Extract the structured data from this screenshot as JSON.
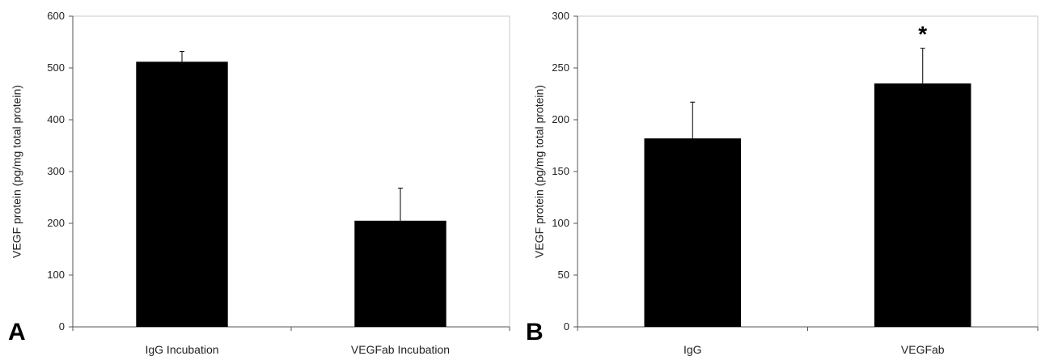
{
  "chart_data": [
    {
      "type": "bar",
      "panel_label": "A",
      "ylabel": "VEGF protein (pg/mg total protein)",
      "categories": [
        "IgG Incubation",
        "VEGFab Incubation"
      ],
      "values": [
        512,
        205
      ],
      "errors": [
        20,
        63
      ],
      "annotations": [
        "",
        ""
      ],
      "ylim": [
        0,
        600
      ],
      "yticks": [
        0,
        100,
        200,
        300,
        400,
        500,
        600
      ],
      "bar_color": "#000000",
      "grid": false
    },
    {
      "type": "bar",
      "panel_label": "B",
      "ylabel": "VEGF protein (pg/mg total protein)",
      "categories": [
        "IgG",
        "VEGFab"
      ],
      "values": [
        182,
        235
      ],
      "errors": [
        35,
        34
      ],
      "annotations": [
        "",
        "*"
      ],
      "ylim": [
        0,
        300
      ],
      "yticks": [
        0,
        50,
        100,
        150,
        200,
        250,
        300
      ],
      "bar_color": "#000000",
      "grid": false
    }
  ]
}
